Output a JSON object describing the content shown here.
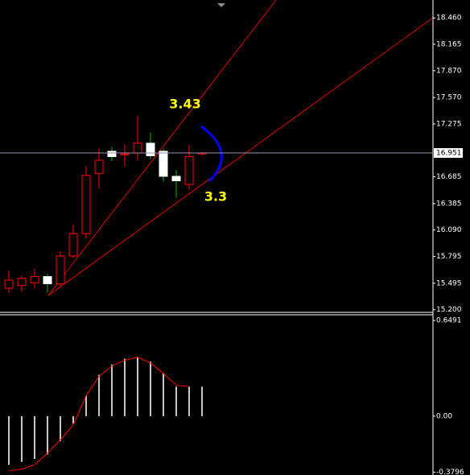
{
  "chart_data": [
    {
      "type": "candlestick",
      "open": [
        15.44,
        15.47,
        15.5,
        15.57,
        15.49,
        15.8,
        16.05,
        16.72,
        16.97,
        16.93,
        16.95,
        17.06,
        16.97,
        16.69,
        16.6,
        16.94
      ],
      "high": [
        15.63,
        15.58,
        15.66,
        15.6,
        15.85,
        16.15,
        16.8,
        17.0,
        17.02,
        17.05,
        17.37,
        17.18,
        17.0,
        16.76,
        17.04,
        16.96
      ],
      "low": [
        15.38,
        15.4,
        15.44,
        15.39,
        15.46,
        15.78,
        16.0,
        16.55,
        16.86,
        16.8,
        16.87,
        16.88,
        16.63,
        16.45,
        16.54,
        16.92
      ],
      "close": [
        15.53,
        15.55,
        15.57,
        15.49,
        15.8,
        16.05,
        16.7,
        16.87,
        16.91,
        16.94,
        17.06,
        16.92,
        16.69,
        16.64,
        16.91,
        16.95
      ],
      "up_color": "#ff0000",
      "down_color": "#ffffff",
      "up_wick_color": "#ff0000",
      "down_wick_color": "#00c000",
      "ylim": [
        15.17,
        18.66
      ],
      "yticks": [
        {
          "value": 18.46,
          "label": "18.460"
        },
        {
          "value": 18.165,
          "label": "18.165"
        },
        {
          "value": 17.87,
          "label": "17.870"
        },
        {
          "value": 17.57,
          "label": "17.570"
        },
        {
          "value": 17.275,
          "label": "17.275"
        },
        {
          "value": 16.685,
          "label": "16.685"
        },
        {
          "value": 16.385,
          "label": "16.385"
        },
        {
          "value": 16.09,
          "label": "16.090"
        },
        {
          "value": 15.795,
          "label": "15.795"
        },
        {
          "value": 15.495,
          "label": "15.495"
        },
        {
          "value": 15.2,
          "label": "15.200"
        }
      ],
      "current_price": {
        "value": 16.951,
        "label": "16.951"
      },
      "annotations": [
        "3.43",
        "3.3"
      ]
    },
    {
      "type": "bar",
      "values": [
        -0.33,
        -0.31,
        -0.29,
        -0.26,
        -0.17,
        -0.05,
        0.14,
        0.28,
        0.35,
        0.39,
        0.4,
        0.37,
        0.29,
        0.2,
        0.2,
        0.2
      ],
      "color": "#c8c8c8",
      "signal": [
        -0.37,
        -0.36,
        -0.33,
        -0.25,
        -0.16,
        -0.06,
        0.14,
        0.27,
        0.34,
        0.38,
        0.4,
        0.36,
        0.29,
        0.21,
        0.2,
        null
      ],
      "signal_color": "#ff0000",
      "ylim": [
        -0.399,
        0.682
      ],
      "yticks": [
        {
          "value": 0.6491,
          "label": "0.6491"
        },
        {
          "value": 0,
          "label": "0.00"
        },
        {
          "value": -0.3796,
          "label": "-0.3796"
        }
      ]
    }
  ]
}
